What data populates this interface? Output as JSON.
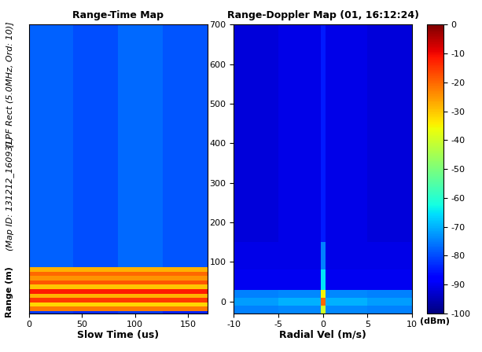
{
  "chart_data": [
    {
      "type": "heatmap",
      "title": "Range-Time Map",
      "x_label": "Slow Time (us)",
      "y_label": "Range (m)",
      "annotations": [
        "(Map ID: 131212_160931)",
        "[LPF Rect (5.0MHz, Ord: 10)]"
      ],
      "xlim": [
        0,
        168
      ],
      "xticks": [
        0,
        50,
        100,
        150
      ],
      "ylim": [
        -30,
        700
      ],
      "tick_labels": "x",
      "x_edges": [
        0,
        42,
        84,
        126,
        168
      ],
      "y_edges": [
        -30,
        -24,
        -13,
        -2,
        9,
        20,
        31,
        42,
        53,
        64,
        75,
        86,
        700
      ],
      "cells": [
        [
          -82,
          -83,
          -82,
          -84
        ],
        [
          -22,
          -22,
          -22,
          -22
        ],
        [
          -32,
          -32,
          -32,
          -32
        ],
        [
          -15,
          -15,
          -15,
          -15
        ],
        [
          -28,
          -28,
          -28,
          -28
        ],
        [
          -12,
          -12,
          -12,
          -12
        ],
        [
          -30,
          -30,
          -30,
          -30
        ],
        [
          -18,
          -18,
          -18,
          -18
        ],
        [
          -25,
          -25,
          -25,
          -25
        ],
        [
          -20,
          -20,
          -20,
          -20
        ],
        [
          -28,
          -28,
          -28,
          -28
        ],
        [
          -78,
          -80,
          -77,
          -79
        ]
      ]
    },
    {
      "type": "heatmap",
      "title": "Range-Doppler Map (01, 16:12:24)",
      "x_label": "Radial Vel (m/s)",
      "xlim": [
        -10,
        10
      ],
      "xticks": [
        -10,
        -5,
        0,
        5,
        10
      ],
      "ylim": [
        -30,
        700
      ],
      "yticks": [
        0,
        100,
        200,
        300,
        400,
        500,
        600,
        700
      ],
      "x_edges": [
        -10,
        -5,
        -0.25,
        0.25,
        5,
        10
      ],
      "y_edges": [
        -30,
        -10,
        10,
        30,
        80,
        150,
        700
      ],
      "cells": [
        [
          -75,
          -74,
          -40,
          -74,
          -75
        ],
        [
          -72,
          -70,
          -20,
          -70,
          -72
        ],
        [
          -75,
          -74,
          -35,
          -74,
          -75
        ],
        [
          -90,
          -90,
          -65,
          -90,
          -90
        ],
        [
          -91,
          -91,
          -75,
          -91,
          -91
        ],
        [
          -92,
          -91,
          -85,
          -91,
          -92
        ]
      ],
      "colorbar_range": [
        -100,
        0
      ],
      "colorbar_ticks": [
        0,
        -10,
        -20,
        -30,
        -40,
        -50,
        -60,
        -70,
        -80,
        -90,
        -100
      ],
      "colorbar_label": "(dBm)"
    }
  ]
}
